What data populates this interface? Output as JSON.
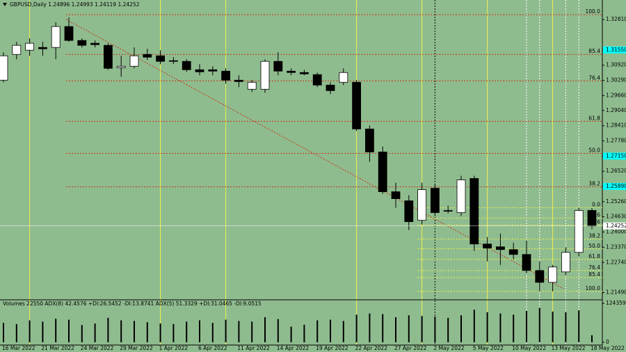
{
  "chart_data": [
    {
      "type": "candlestick",
      "title": "GBPUSD,Daily 1.24896 1.24993 1.24119 1.24252",
      "categories": [
        "16 Mar 2022",
        null,
        null,
        "21 Mar 2022",
        null,
        null,
        "24 Mar 2022",
        null,
        null,
        "29 Mar 2022",
        null,
        null,
        "1 Apr 2022",
        null,
        null,
        "6 Apr 2022",
        null,
        null,
        "11 Apr 2022",
        null,
        null,
        "14 Apr 2022",
        null,
        null,
        "19 Apr 2022",
        null,
        null,
        "22 Apr 2022",
        null,
        null,
        "27 Apr 2022",
        null,
        null,
        "2 May 2022",
        null,
        null,
        "5 May 2022",
        null,
        null,
        "10 May 2022",
        null,
        null,
        "13 May 2022",
        null,
        null,
        "18 May 2022"
      ],
      "open": [
        1.30296,
        1.31365,
        1.31538,
        1.31654,
        1.31654,
        1.32521,
        1.31943,
        1.31827,
        1.31741,
        1.30816,
        1.30874,
        1.31365,
        1.31307,
        1.31105,
        1.31076,
        1.30729,
        1.30729,
        1.30671,
        1.30296,
        1.2992,
        1.2992,
        1.31076,
        1.30671,
        1.30614,
        1.30527,
        1.30093,
        1.30209,
        1.30209,
        1.28273,
        1.27319,
        1.25672,
        1.25296,
        1.24487,
        1.25816,
        1.24891,
        1.24805,
        1.26221,
        1.23504,
        1.23389,
        1.23273,
        1.23071,
        1.22406,
        1.21915,
        1.22348,
        1.23157,
        1.24896
      ],
      "high": [
        1.31452,
        1.31885,
        1.3203,
        1.31885,
        1.32694,
        1.32897,
        1.3203,
        1.31943,
        1.31827,
        1.31307,
        1.31654,
        1.31596,
        1.31538,
        1.31249,
        1.31163,
        1.3096,
        1.30874,
        1.30787,
        1.30498,
        1.30296,
        1.31163,
        1.31452,
        1.30787,
        1.30729,
        1.30614,
        1.30209,
        1.30787,
        1.30296,
        1.28417,
        1.2755,
        1.26047,
        1.25527,
        1.26047,
        1.25961,
        1.25094,
        1.26336,
        1.26336,
        1.23793,
        1.23937,
        1.23562,
        1.23649,
        1.22782,
        1.22637,
        1.2336,
        1.25007,
        1.24993
      ],
      "low": [
        1.30209,
        1.31163,
        1.31307,
        1.31307,
        1.31163,
        1.31885,
        1.31654,
        1.31654,
        1.30729,
        1.3044,
        1.30787,
        1.31134,
        1.3096,
        1.3096,
        1.30642,
        1.30498,
        1.30498,
        1.30151,
        1.30007,
        1.29804,
        1.29775,
        1.30498,
        1.30498,
        1.30498,
        1.30007,
        1.29718,
        1.30093,
        1.28186,
        1.26914,
        1.25585,
        1.25007,
        1.24082,
        1.24313,
        1.2466,
        1.24776,
        1.2466,
        1.23215,
        1.22782,
        1.22637,
        1.22868,
        1.2229,
        1.21539,
        1.21539,
        1.22204,
        1.22984,
        1.24119
      ],
      "close": [
        1.31307,
        1.31741,
        1.31827,
        1.31596,
        1.32521,
        1.31943,
        1.31741,
        1.3177,
        1.30787,
        1.30874,
        1.31307,
        1.31249,
        1.31076,
        1.31076,
        1.30729,
        1.30642,
        1.30671,
        1.30296,
        1.30238,
        1.30209,
        1.31076,
        1.30671,
        1.30614,
        1.30556,
        1.30093,
        1.29862,
        1.30614,
        1.28273,
        1.27319,
        1.25672,
        1.25383,
        1.24429,
        1.25758,
        1.24805,
        1.24862,
        1.26163,
        1.23504,
        1.23331,
        1.23273,
        1.23071,
        1.22406,
        1.21915,
        1.22551,
        1.23157,
        1.24891,
        1.24252
      ],
      "up_color": "#ffffff",
      "down_color": "#000000",
      "ylim": [
        1.2119,
        1.3362
      ],
      "yticks": [
        {
          "value": 1.3281,
          "label": "1.32810"
        },
        {
          "value": 1.3155,
          "label": "1.31550",
          "color": "#00ffff"
        },
        {
          "value": 1.3092,
          "label": "1.30920"
        },
        {
          "value": 1.3029,
          "label": "1.30290"
        },
        {
          "value": 1.2966,
          "label": "1.29660"
        },
        {
          "value": 1.2904,
          "label": "1.29040"
        },
        {
          "value": 1.2841,
          "label": "1.28410"
        },
        {
          "value": 1.2778,
          "label": "1.27780"
        },
        {
          "value": 1.2715,
          "label": "1.27150",
          "color": "#00ffff"
        },
        {
          "value": 1.2652,
          "label": "1.26520"
        },
        {
          "value": 1.2589,
          "label": "1.25890",
          "color": "#00ffff"
        },
        {
          "value": 1.2526,
          "label": "1.25260"
        },
        {
          "value": 1.2463,
          "label": "1.24630"
        },
        {
          "value": 1.24,
          "label": "1.24000"
        },
        {
          "value": 1.2337,
          "label": "1.23370"
        },
        {
          "value": 1.2274,
          "label": "1.22740"
        },
        {
          "value": 1.2149,
          "label": "1.21490"
        }
      ],
      "last_price": {
        "value": 1.24252,
        "label": "1.24252"
      },
      "fibonacci": [
        {
          "color": "#c83214",
          "levels": [
            {
              "label": "100.0",
              "price": 1.33012
            },
            {
              "label": "85.4",
              "price": 1.31365
            },
            {
              "label": "76.4",
              "price": 1.30267
            },
            {
              "label": "61.8",
              "price": 1.28591
            },
            {
              "label": "50.0",
              "price": 1.27261
            },
            {
              "label": "38.2",
              "price": 1.25874
            }
          ]
        },
        {
          "color": "#f0f050",
          "levels": [
            {
              "label": "0.0",
              "price": 1.25007
            },
            {
              "label": "14.6",
              "price": 1.24574
            },
            {
              "label": "23.6",
              "price": 1.24285
            },
            {
              "label": "38.2",
              "price": 1.23707
            },
            {
              "label": "50.0",
              "price": 1.23302
            },
            {
              "label": "61.8",
              "price": 1.22868
            },
            {
              "label": "76.4",
              "price": 1.22406
            },
            {
              "label": "85.4",
              "price": 1.22117
            },
            {
              "label": "100.0",
              "price": 1.21539
            }
          ]
        }
      ]
    },
    {
      "type": "bar",
      "title": "Volumes 22550 ADX(8) 42.4576 +DI:26.5452 -DI:13.8741 ADX(5) 51.3329 +DI:31.0465 -DI:9.0515",
      "values": [
        62000,
        58000,
        70000,
        66000,
        75000,
        72000,
        55000,
        60000,
        78000,
        70000,
        68000,
        64000,
        60000,
        58000,
        66000,
        70000,
        62000,
        72000,
        68000,
        66000,
        80000,
        74000,
        50000,
        56000,
        70000,
        72000,
        68000,
        88000,
        92000,
        90000,
        80000,
        86000,
        84000,
        82000,
        78000,
        86000,
        104000,
        96000,
        92000,
        88000,
        100000,
        110000,
        98000,
        96000,
        102000,
        22550
      ],
      "color": "#000000",
      "ylim": [
        0,
        124359
      ],
      "yticks": [
        0,
        124359
      ]
    }
  ]
}
